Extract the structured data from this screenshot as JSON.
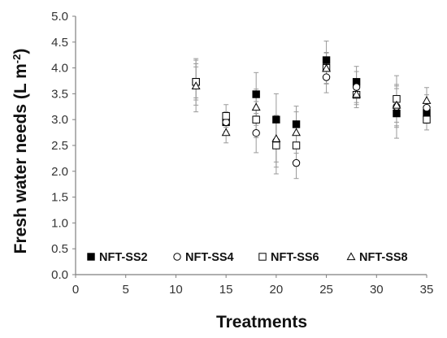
{
  "chart_data": {
    "type": "scatter",
    "xlabel": "Treatments",
    "ylabel": "Fresh water needs (L m",
    "ylabel_sup": "-2",
    "ylabel_close": ")",
    "xlim": [
      0,
      35
    ],
    "ylim": [
      0.0,
      5.0
    ],
    "xticks": [
      "0",
      "5",
      "10",
      "15",
      "20",
      "25",
      "30",
      "35"
    ],
    "yticks": [
      "0.0",
      "0.5",
      "1.0",
      "1.5",
      "2.0",
      "2.5",
      "3.0",
      "3.5",
      "4.0",
      "4.5",
      "5.0"
    ],
    "grid": false,
    "legend_position": "bottom",
    "series": [
      {
        "name": "NFT-SS2",
        "marker": "filled-square",
        "color": "#000000",
        "points": [
          {
            "x": 12,
            "y": 3.73,
            "err": 0.45
          },
          {
            "x": 15,
            "y": 2.95,
            "err": 0.18
          },
          {
            "x": 18,
            "y": 3.49,
            "err": 0.42
          },
          {
            "x": 20,
            "y": 3.0,
            "err": 0.5
          },
          {
            "x": 22,
            "y": 2.91,
            "err": 0.35
          },
          {
            "x": 25,
            "y": 4.15,
            "err": 0.37
          },
          {
            "x": 28,
            "y": 3.73,
            "err": 0.3
          },
          {
            "x": 32,
            "y": 3.12,
            "err": 0.48
          },
          {
            "x": 35,
            "y": 3.13,
            "err": 0.2
          }
        ]
      },
      {
        "name": "NFT-SS4",
        "marker": "open-circle",
        "color": "#000000",
        "points": [
          {
            "x": 12,
            "y": 3.72,
            "err": 0.3
          },
          {
            "x": 15,
            "y": 2.95,
            "err": 0.2
          },
          {
            "x": 18,
            "y": 2.74,
            "err": 0.38
          },
          {
            "x": 20,
            "y": 2.58,
            "err": 0.5
          },
          {
            "x": 22,
            "y": 2.16,
            "err": 0.3
          },
          {
            "x": 25,
            "y": 3.82,
            "err": 0.3
          },
          {
            "x": 28,
            "y": 3.63,
            "err": 0.3
          },
          {
            "x": 32,
            "y": 3.25,
            "err": 0.4
          },
          {
            "x": 35,
            "y": 3.23,
            "err": 0.25
          }
        ]
      },
      {
        "name": "NFT-SS6",
        "marker": "open-square",
        "color": "#000000",
        "points": [
          {
            "x": 12,
            "y": 3.73,
            "err": 0.35
          },
          {
            "x": 15,
            "y": 3.07,
            "err": 0.22
          },
          {
            "x": 18,
            "y": 3.0,
            "err": 0.35
          },
          {
            "x": 20,
            "y": 2.5,
            "err": 0.55
          },
          {
            "x": 22,
            "y": 2.5,
            "err": 0.4
          },
          {
            "x": 25,
            "y": 4.0,
            "err": 0.3
          },
          {
            "x": 28,
            "y": 3.48,
            "err": 0.25
          },
          {
            "x": 32,
            "y": 3.4,
            "err": 0.45
          },
          {
            "x": 35,
            "y": 3.0,
            "err": 0.2
          }
        ]
      },
      {
        "name": "NFT-SS8",
        "marker": "open-triangle",
        "color": "#000000",
        "points": [
          {
            "x": 12,
            "y": 3.65,
            "err": 0.5
          },
          {
            "x": 15,
            "y": 2.75,
            "err": 0.2
          },
          {
            "x": 18,
            "y": 3.24,
            "err": 0.35
          },
          {
            "x": 20,
            "y": 2.63,
            "err": 0.45
          },
          {
            "x": 22,
            "y": 2.75,
            "err": 0.4
          },
          {
            "x": 25,
            "y": 3.99,
            "err": 0.3
          },
          {
            "x": 28,
            "y": 3.49,
            "err": 0.2
          },
          {
            "x": 32,
            "y": 3.28,
            "err": 0.4
          },
          {
            "x": 35,
            "y": 3.37,
            "err": 0.25
          }
        ]
      }
    ]
  }
}
